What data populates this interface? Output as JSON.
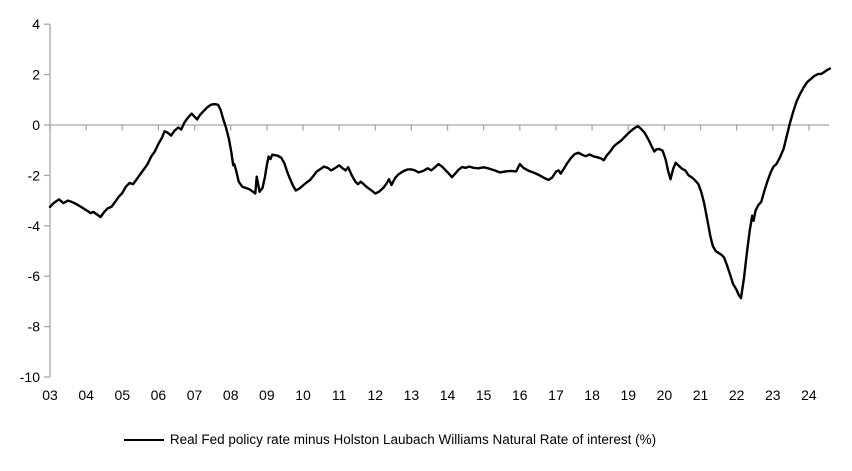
{
  "legend": {
    "label": "Real Fed policy rate minus Holston Laubach Williams Natural Rate of interest (%)"
  },
  "chart_data": {
    "type": "line",
    "title": "",
    "xlabel": "",
    "ylabel": "",
    "ylim": [
      -10,
      4
    ],
    "xlim": [
      2003,
      2024.75
    ],
    "grid": false,
    "zero_line": true,
    "axis_color": "#A6A6A6",
    "label_color": "#000000",
    "legend_position": "bottom-center",
    "y_axis": {
      "ticks": [
        4,
        2,
        0,
        -2,
        -4,
        -6,
        -8,
        -10
      ]
    },
    "x_axis": {
      "tick_years": [
        2003,
        2004,
        2005,
        2006,
        2007,
        2008,
        2009,
        2010,
        2011,
        2012,
        2013,
        2014,
        2015,
        2016,
        2017,
        2018,
        2019,
        2020,
        2021,
        2022,
        2023,
        2024
      ],
      "tick_labels": [
        "03",
        "04",
        "05",
        "06",
        "07",
        "08",
        "09",
        "10",
        "11",
        "12",
        "13",
        "14",
        "15",
        "16",
        "17",
        "18",
        "19",
        "20",
        "21",
        "22",
        "23",
        "24"
      ]
    },
    "series": [
      {
        "name": "Real Fed policy rate minus Holston Laubach Williams Natural Rate of interest (%)",
        "color": "#000000",
        "points": [
          [
            2003.0,
            -3.25
          ],
          [
            2003.1,
            -3.1
          ],
          [
            2003.25,
            -2.95
          ],
          [
            2003.37,
            -3.1
          ],
          [
            2003.5,
            -3.0
          ],
          [
            2003.6,
            -3.05
          ],
          [
            2003.7,
            -3.12
          ],
          [
            2003.8,
            -3.2
          ],
          [
            2003.92,
            -3.3
          ],
          [
            2004.05,
            -3.42
          ],
          [
            2004.12,
            -3.5
          ],
          [
            2004.2,
            -3.45
          ],
          [
            2004.3,
            -3.55
          ],
          [
            2004.4,
            -3.65
          ],
          [
            2004.5,
            -3.45
          ],
          [
            2004.6,
            -3.3
          ],
          [
            2004.7,
            -3.25
          ],
          [
            2004.8,
            -3.05
          ],
          [
            2004.9,
            -2.85
          ],
          [
            2005.0,
            -2.7
          ],
          [
            2005.1,
            -2.45
          ],
          [
            2005.2,
            -2.3
          ],
          [
            2005.3,
            -2.35
          ],
          [
            2005.4,
            -2.15
          ],
          [
            2005.5,
            -1.95
          ],
          [
            2005.6,
            -1.75
          ],
          [
            2005.7,
            -1.55
          ],
          [
            2005.8,
            -1.25
          ],
          [
            2005.9,
            -1.05
          ],
          [
            2006.0,
            -0.75
          ],
          [
            2006.1,
            -0.5
          ],
          [
            2006.17,
            -0.25
          ],
          [
            2006.25,
            -0.3
          ],
          [
            2006.35,
            -0.42
          ],
          [
            2006.45,
            -0.22
          ],
          [
            2006.55,
            -0.1
          ],
          [
            2006.63,
            -0.18
          ],
          [
            2006.72,
            0.1
          ],
          [
            2006.82,
            0.3
          ],
          [
            2006.92,
            0.45
          ],
          [
            2007.0,
            0.33
          ],
          [
            2007.07,
            0.22
          ],
          [
            2007.15,
            0.4
          ],
          [
            2007.25,
            0.55
          ],
          [
            2007.35,
            0.7
          ],
          [
            2007.45,
            0.8
          ],
          [
            2007.55,
            0.83
          ],
          [
            2007.65,
            0.8
          ],
          [
            2007.72,
            0.6
          ],
          [
            2007.8,
            0.2
          ],
          [
            2007.87,
            -0.1
          ],
          [
            2007.95,
            -0.55
          ],
          [
            2008.02,
            -1.1
          ],
          [
            2008.07,
            -1.6
          ],
          [
            2008.1,
            -1.55
          ],
          [
            2008.15,
            -1.8
          ],
          [
            2008.22,
            -2.25
          ],
          [
            2008.32,
            -2.45
          ],
          [
            2008.42,
            -2.5
          ],
          [
            2008.52,
            -2.55
          ],
          [
            2008.62,
            -2.65
          ],
          [
            2008.68,
            -2.72
          ],
          [
            2008.72,
            -2.05
          ],
          [
            2008.8,
            -2.65
          ],
          [
            2008.88,
            -2.5
          ],
          [
            2008.95,
            -2.05
          ],
          [
            2009.0,
            -1.6
          ],
          [
            2009.05,
            -1.25
          ],
          [
            2009.1,
            -1.35
          ],
          [
            2009.15,
            -1.18
          ],
          [
            2009.22,
            -1.2
          ],
          [
            2009.3,
            -1.22
          ],
          [
            2009.4,
            -1.3
          ],
          [
            2009.48,
            -1.5
          ],
          [
            2009.55,
            -1.8
          ],
          [
            2009.63,
            -2.1
          ],
          [
            2009.72,
            -2.4
          ],
          [
            2009.8,
            -2.6
          ],
          [
            2009.9,
            -2.52
          ],
          [
            2010.0,
            -2.4
          ],
          [
            2010.1,
            -2.28
          ],
          [
            2010.2,
            -2.18
          ],
          [
            2010.3,
            -2.0
          ],
          [
            2010.38,
            -1.85
          ],
          [
            2010.48,
            -1.75
          ],
          [
            2010.58,
            -1.65
          ],
          [
            2010.68,
            -1.7
          ],
          [
            2010.78,
            -1.8
          ],
          [
            2010.88,
            -1.72
          ],
          [
            2011.0,
            -1.6
          ],
          [
            2011.1,
            -1.72
          ],
          [
            2011.18,
            -1.8
          ],
          [
            2011.25,
            -1.68
          ],
          [
            2011.35,
            -2.0
          ],
          [
            2011.45,
            -2.25
          ],
          [
            2011.52,
            -2.35
          ],
          [
            2011.6,
            -2.25
          ],
          [
            2011.68,
            -2.35
          ],
          [
            2011.78,
            -2.48
          ],
          [
            2011.9,
            -2.6
          ],
          [
            2012.0,
            -2.72
          ],
          [
            2012.1,
            -2.65
          ],
          [
            2012.22,
            -2.5
          ],
          [
            2012.3,
            -2.35
          ],
          [
            2012.38,
            -2.15
          ],
          [
            2012.45,
            -2.38
          ],
          [
            2012.55,
            -2.1
          ],
          [
            2012.65,
            -1.95
          ],
          [
            2012.78,
            -1.83
          ],
          [
            2012.9,
            -1.76
          ],
          [
            2013.0,
            -1.76
          ],
          [
            2013.1,
            -1.8
          ],
          [
            2013.2,
            -1.88
          ],
          [
            2013.33,
            -1.82
          ],
          [
            2013.45,
            -1.72
          ],
          [
            2013.55,
            -1.8
          ],
          [
            2013.65,
            -1.68
          ],
          [
            2013.75,
            -1.55
          ],
          [
            2013.85,
            -1.65
          ],
          [
            2013.95,
            -1.8
          ],
          [
            2014.05,
            -1.95
          ],
          [
            2014.12,
            -2.07
          ],
          [
            2014.2,
            -1.95
          ],
          [
            2014.3,
            -1.78
          ],
          [
            2014.4,
            -1.67
          ],
          [
            2014.5,
            -1.7
          ],
          [
            2014.6,
            -1.65
          ],
          [
            2014.72,
            -1.7
          ],
          [
            2014.85,
            -1.72
          ],
          [
            2015.0,
            -1.68
          ],
          [
            2015.15,
            -1.73
          ],
          [
            2015.3,
            -1.8
          ],
          [
            2015.45,
            -1.88
          ],
          [
            2015.6,
            -1.84
          ],
          [
            2015.75,
            -1.82
          ],
          [
            2015.9,
            -1.84
          ],
          [
            2016.0,
            -1.55
          ],
          [
            2016.1,
            -1.7
          ],
          [
            2016.25,
            -1.82
          ],
          [
            2016.4,
            -1.9
          ],
          [
            2016.55,
            -2.0
          ],
          [
            2016.7,
            -2.12
          ],
          [
            2016.8,
            -2.18
          ],
          [
            2016.9,
            -2.08
          ],
          [
            2017.0,
            -1.85
          ],
          [
            2017.07,
            -1.8
          ],
          [
            2017.13,
            -1.93
          ],
          [
            2017.22,
            -1.73
          ],
          [
            2017.32,
            -1.5
          ],
          [
            2017.42,
            -1.3
          ],
          [
            2017.52,
            -1.15
          ],
          [
            2017.62,
            -1.1
          ],
          [
            2017.72,
            -1.18
          ],
          [
            2017.82,
            -1.24
          ],
          [
            2017.93,
            -1.17
          ],
          [
            2018.05,
            -1.25
          ],
          [
            2018.15,
            -1.28
          ],
          [
            2018.25,
            -1.33
          ],
          [
            2018.32,
            -1.4
          ],
          [
            2018.4,
            -1.22
          ],
          [
            2018.5,
            -1.05
          ],
          [
            2018.6,
            -0.85
          ],
          [
            2018.68,
            -0.75
          ],
          [
            2018.75,
            -0.68
          ],
          [
            2018.82,
            -0.6
          ],
          [
            2018.92,
            -0.45
          ],
          [
            2019.02,
            -0.3
          ],
          [
            2019.12,
            -0.18
          ],
          [
            2019.22,
            -0.08
          ],
          [
            2019.28,
            -0.05
          ],
          [
            2019.35,
            -0.15
          ],
          [
            2019.45,
            -0.3
          ],
          [
            2019.55,
            -0.55
          ],
          [
            2019.65,
            -0.85
          ],
          [
            2019.72,
            -1.05
          ],
          [
            2019.78,
            -0.97
          ],
          [
            2019.85,
            -0.95
          ],
          [
            2019.95,
            -1.02
          ],
          [
            2020.03,
            -1.35
          ],
          [
            2020.1,
            -1.8
          ],
          [
            2020.17,
            -2.15
          ],
          [
            2020.24,
            -1.75
          ],
          [
            2020.31,
            -1.5
          ],
          [
            2020.4,
            -1.62
          ],
          [
            2020.5,
            -1.75
          ],
          [
            2020.58,
            -1.8
          ],
          [
            2020.67,
            -2.0
          ],
          [
            2020.76,
            -2.08
          ],
          [
            2020.85,
            -2.2
          ],
          [
            2020.94,
            -2.35
          ],
          [
            2021.02,
            -2.65
          ],
          [
            2021.1,
            -3.1
          ],
          [
            2021.18,
            -3.7
          ],
          [
            2021.27,
            -4.4
          ],
          [
            2021.34,
            -4.8
          ],
          [
            2021.42,
            -5.0
          ],
          [
            2021.5,
            -5.08
          ],
          [
            2021.58,
            -5.15
          ],
          [
            2021.65,
            -5.25
          ],
          [
            2021.73,
            -5.55
          ],
          [
            2021.82,
            -5.95
          ],
          [
            2021.9,
            -6.3
          ],
          [
            2022.0,
            -6.55
          ],
          [
            2022.06,
            -6.75
          ],
          [
            2022.12,
            -6.87
          ],
          [
            2022.2,
            -6.1
          ],
          [
            2022.28,
            -5.1
          ],
          [
            2022.36,
            -4.2
          ],
          [
            2022.43,
            -3.6
          ],
          [
            2022.47,
            -3.8
          ],
          [
            2022.52,
            -3.4
          ],
          [
            2022.6,
            -3.18
          ],
          [
            2022.68,
            -3.05
          ],
          [
            2022.77,
            -2.6
          ],
          [
            2022.86,
            -2.2
          ],
          [
            2022.95,
            -1.85
          ],
          [
            2023.02,
            -1.65
          ],
          [
            2023.1,
            -1.55
          ],
          [
            2023.2,
            -1.28
          ],
          [
            2023.3,
            -0.95
          ],
          [
            2023.4,
            -0.35
          ],
          [
            2023.48,
            0.1
          ],
          [
            2023.57,
            0.55
          ],
          [
            2023.66,
            0.95
          ],
          [
            2023.75,
            1.22
          ],
          [
            2023.85,
            1.48
          ],
          [
            2023.95,
            1.7
          ],
          [
            2024.05,
            1.82
          ],
          [
            2024.15,
            1.95
          ],
          [
            2024.25,
            2.02
          ],
          [
            2024.35,
            2.03
          ],
          [
            2024.42,
            2.1
          ],
          [
            2024.5,
            2.18
          ],
          [
            2024.58,
            2.24
          ]
        ]
      }
    ]
  }
}
